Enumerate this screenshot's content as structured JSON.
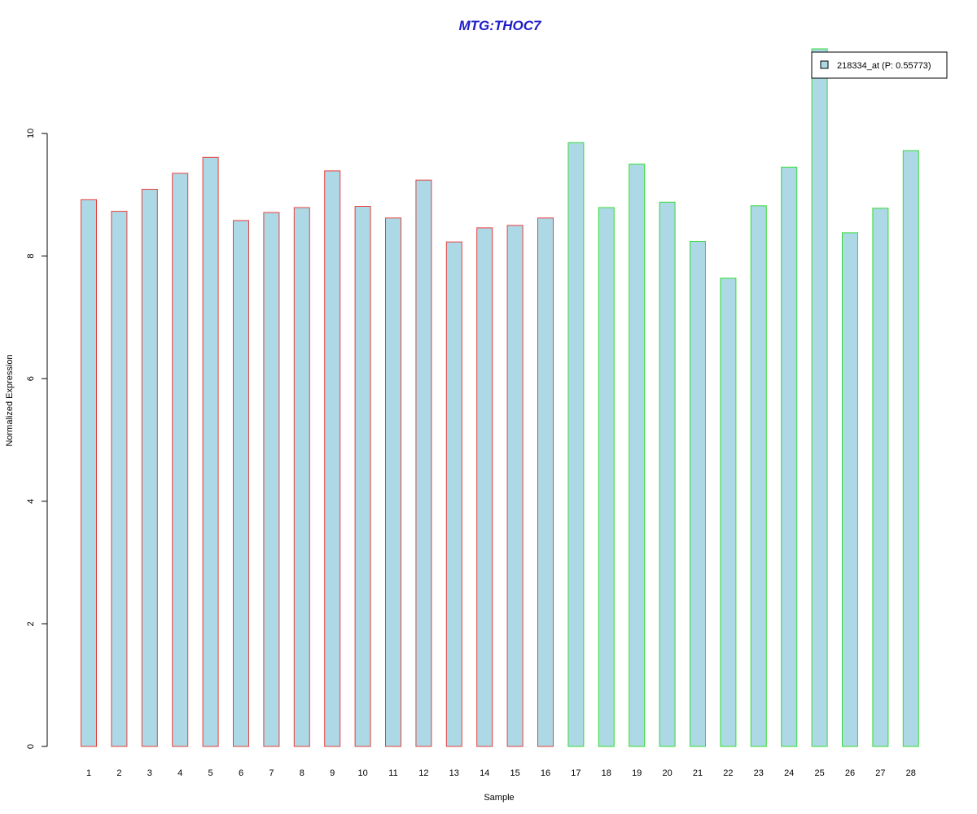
{
  "chart_data": {
    "type": "bar",
    "title": "MTG:THOC7",
    "xlabel": "Sample",
    "ylabel": "Normalized Expression",
    "categories": [
      "1",
      "2",
      "3",
      "4",
      "5",
      "6",
      "7",
      "8",
      "9",
      "10",
      "11",
      "12",
      "13",
      "14",
      "15",
      "16",
      "17",
      "18",
      "19",
      "20",
      "21",
      "22",
      "23",
      "24",
      "25",
      "26",
      "27",
      "28"
    ],
    "series": [
      {
        "name": "218334_at (P: 0.55773)",
        "values": [
          8.92,
          8.73,
          9.09,
          9.35,
          9.61,
          8.58,
          8.71,
          8.79,
          9.39,
          8.81,
          8.62,
          9.24,
          8.23,
          8.46,
          8.5,
          8.62,
          9.85,
          8.79,
          9.5,
          8.88,
          8.24,
          7.64,
          8.82,
          9.45,
          11.38,
          8.38,
          8.78,
          9.72
        ]
      }
    ],
    "groups": [
      {
        "from": 1,
        "to": 16,
        "border_color": "#e8403c"
      },
      {
        "from": 17,
        "to": 28,
        "border_color": "#33dd33"
      }
    ],
    "y_ticks": [
      "0",
      "2",
      "4",
      "6",
      "8",
      "10"
    ],
    "ylim": [
      0,
      11.38
    ],
    "grid": false,
    "legend_position": "top-right",
    "colors": {
      "bar_fill": "#add8e6",
      "title": "#1c1cc8",
      "axis": "#000000"
    }
  }
}
